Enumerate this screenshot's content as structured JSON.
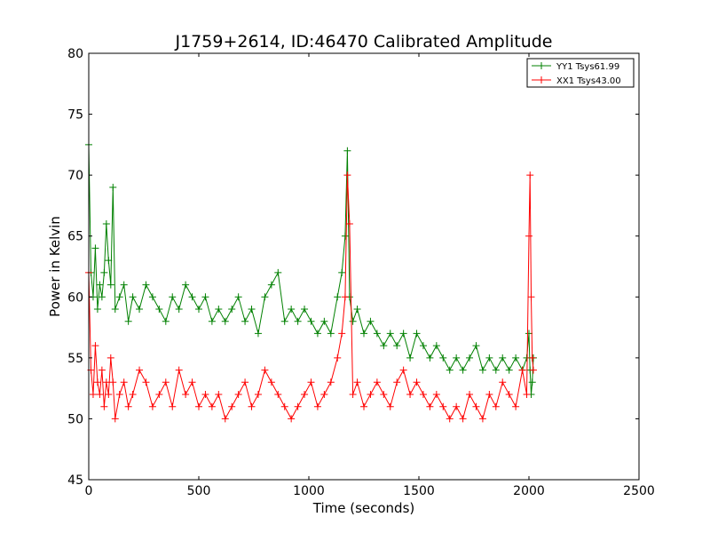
{
  "chart_data": {
    "type": "line",
    "title": "J1759+2614, ID:46470 Calibrated Amplitude",
    "xlabel": "Time (seconds)",
    "ylabel": "Power in Kelvin",
    "xlim": [
      0,
      2500
    ],
    "ylim": [
      45,
      80
    ],
    "xticks": [
      0,
      500,
      1000,
      1500,
      2000,
      2500
    ],
    "yticks": [
      45,
      50,
      55,
      60,
      65,
      70,
      75,
      80
    ],
    "xtick_labels": [
      "0",
      "500",
      "1000",
      "1500",
      "2000",
      "2500"
    ],
    "ytick_labels": [
      "45",
      "50",
      "55",
      "60",
      "65",
      "70",
      "75",
      "80"
    ],
    "grid": false,
    "legend_position": "top-right",
    "marker": "+",
    "series": [
      {
        "name": "YY1 Tsys61.99",
        "color": "#008000",
        "x": [
          0,
          10,
          20,
          30,
          40,
          50,
          60,
          70,
          80,
          90,
          100,
          110,
          120,
          140,
          160,
          180,
          200,
          230,
          260,
          290,
          320,
          350,
          380,
          410,
          440,
          470,
          500,
          530,
          560,
          590,
          620,
          650,
          680,
          710,
          740,
          770,
          800,
          830,
          860,
          890,
          920,
          950,
          980,
          1010,
          1040,
          1070,
          1100,
          1130,
          1150,
          1165,
          1175,
          1185,
          1200,
          1220,
          1250,
          1280,
          1310,
          1340,
          1370,
          1400,
          1430,
          1460,
          1490,
          1520,
          1550,
          1580,
          1610,
          1640,
          1670,
          1700,
          1730,
          1760,
          1790,
          1820,
          1850,
          1880,
          1910,
          1940,
          1970,
          1990,
          2000,
          2005,
          2010,
          2015,
          2020
        ],
        "y": [
          72.5,
          62,
          60,
          64,
          59,
          61,
          60,
          62,
          66,
          63,
          61,
          69,
          59,
          60,
          61,
          58,
          60,
          59,
          61,
          60,
          59,
          58,
          60,
          59,
          61,
          60,
          59,
          60,
          58,
          59,
          58,
          59,
          60,
          58,
          59,
          57,
          60,
          61,
          62,
          58,
          59,
          58,
          59,
          58,
          57,
          58,
          57,
          60,
          62,
          65,
          72,
          60,
          58,
          59,
          57,
          58,
          57,
          56,
          57,
          56,
          57,
          55,
          57,
          56,
          55,
          56,
          55,
          54,
          55,
          54,
          55,
          56,
          54,
          55,
          54,
          55,
          54,
          55,
          54,
          55,
          57,
          54,
          52,
          53,
          55
        ]
      },
      {
        "name": "XX1 Tsys43.00",
        "color": "#ff0000",
        "x": [
          0,
          10,
          20,
          30,
          40,
          50,
          60,
          70,
          80,
          90,
          100,
          110,
          120,
          140,
          160,
          180,
          200,
          230,
          260,
          290,
          320,
          350,
          380,
          410,
          440,
          470,
          500,
          530,
          560,
          590,
          620,
          650,
          680,
          710,
          740,
          770,
          800,
          830,
          860,
          890,
          920,
          950,
          980,
          1010,
          1040,
          1070,
          1100,
          1130,
          1150,
          1165,
          1175,
          1185,
          1200,
          1220,
          1250,
          1280,
          1310,
          1340,
          1370,
          1400,
          1430,
          1460,
          1490,
          1520,
          1550,
          1580,
          1610,
          1640,
          1670,
          1700,
          1730,
          1760,
          1790,
          1820,
          1850,
          1880,
          1910,
          1940,
          1970,
          1990,
          2000,
          2005,
          2010,
          2015,
          2020
        ],
        "y": [
          62,
          54,
          52,
          56,
          53,
          52,
          54,
          51,
          53,
          52,
          55,
          53,
          50,
          52,
          53,
          51,
          52,
          54,
          53,
          51,
          52,
          53,
          51,
          54,
          52,
          53,
          51,
          52,
          51,
          52,
          50,
          51,
          52,
          53,
          51,
          52,
          54,
          53,
          52,
          51,
          50,
          51,
          52,
          53,
          51,
          52,
          53,
          55,
          57,
          60,
          70,
          66,
          52,
          53,
          51,
          52,
          53,
          52,
          51,
          53,
          54,
          52,
          53,
          52,
          51,
          52,
          51,
          50,
          51,
          50,
          52,
          51,
          50,
          52,
          51,
          53,
          52,
          51,
          54,
          52,
          65,
          70,
          60,
          55,
          54
        ]
      }
    ]
  }
}
